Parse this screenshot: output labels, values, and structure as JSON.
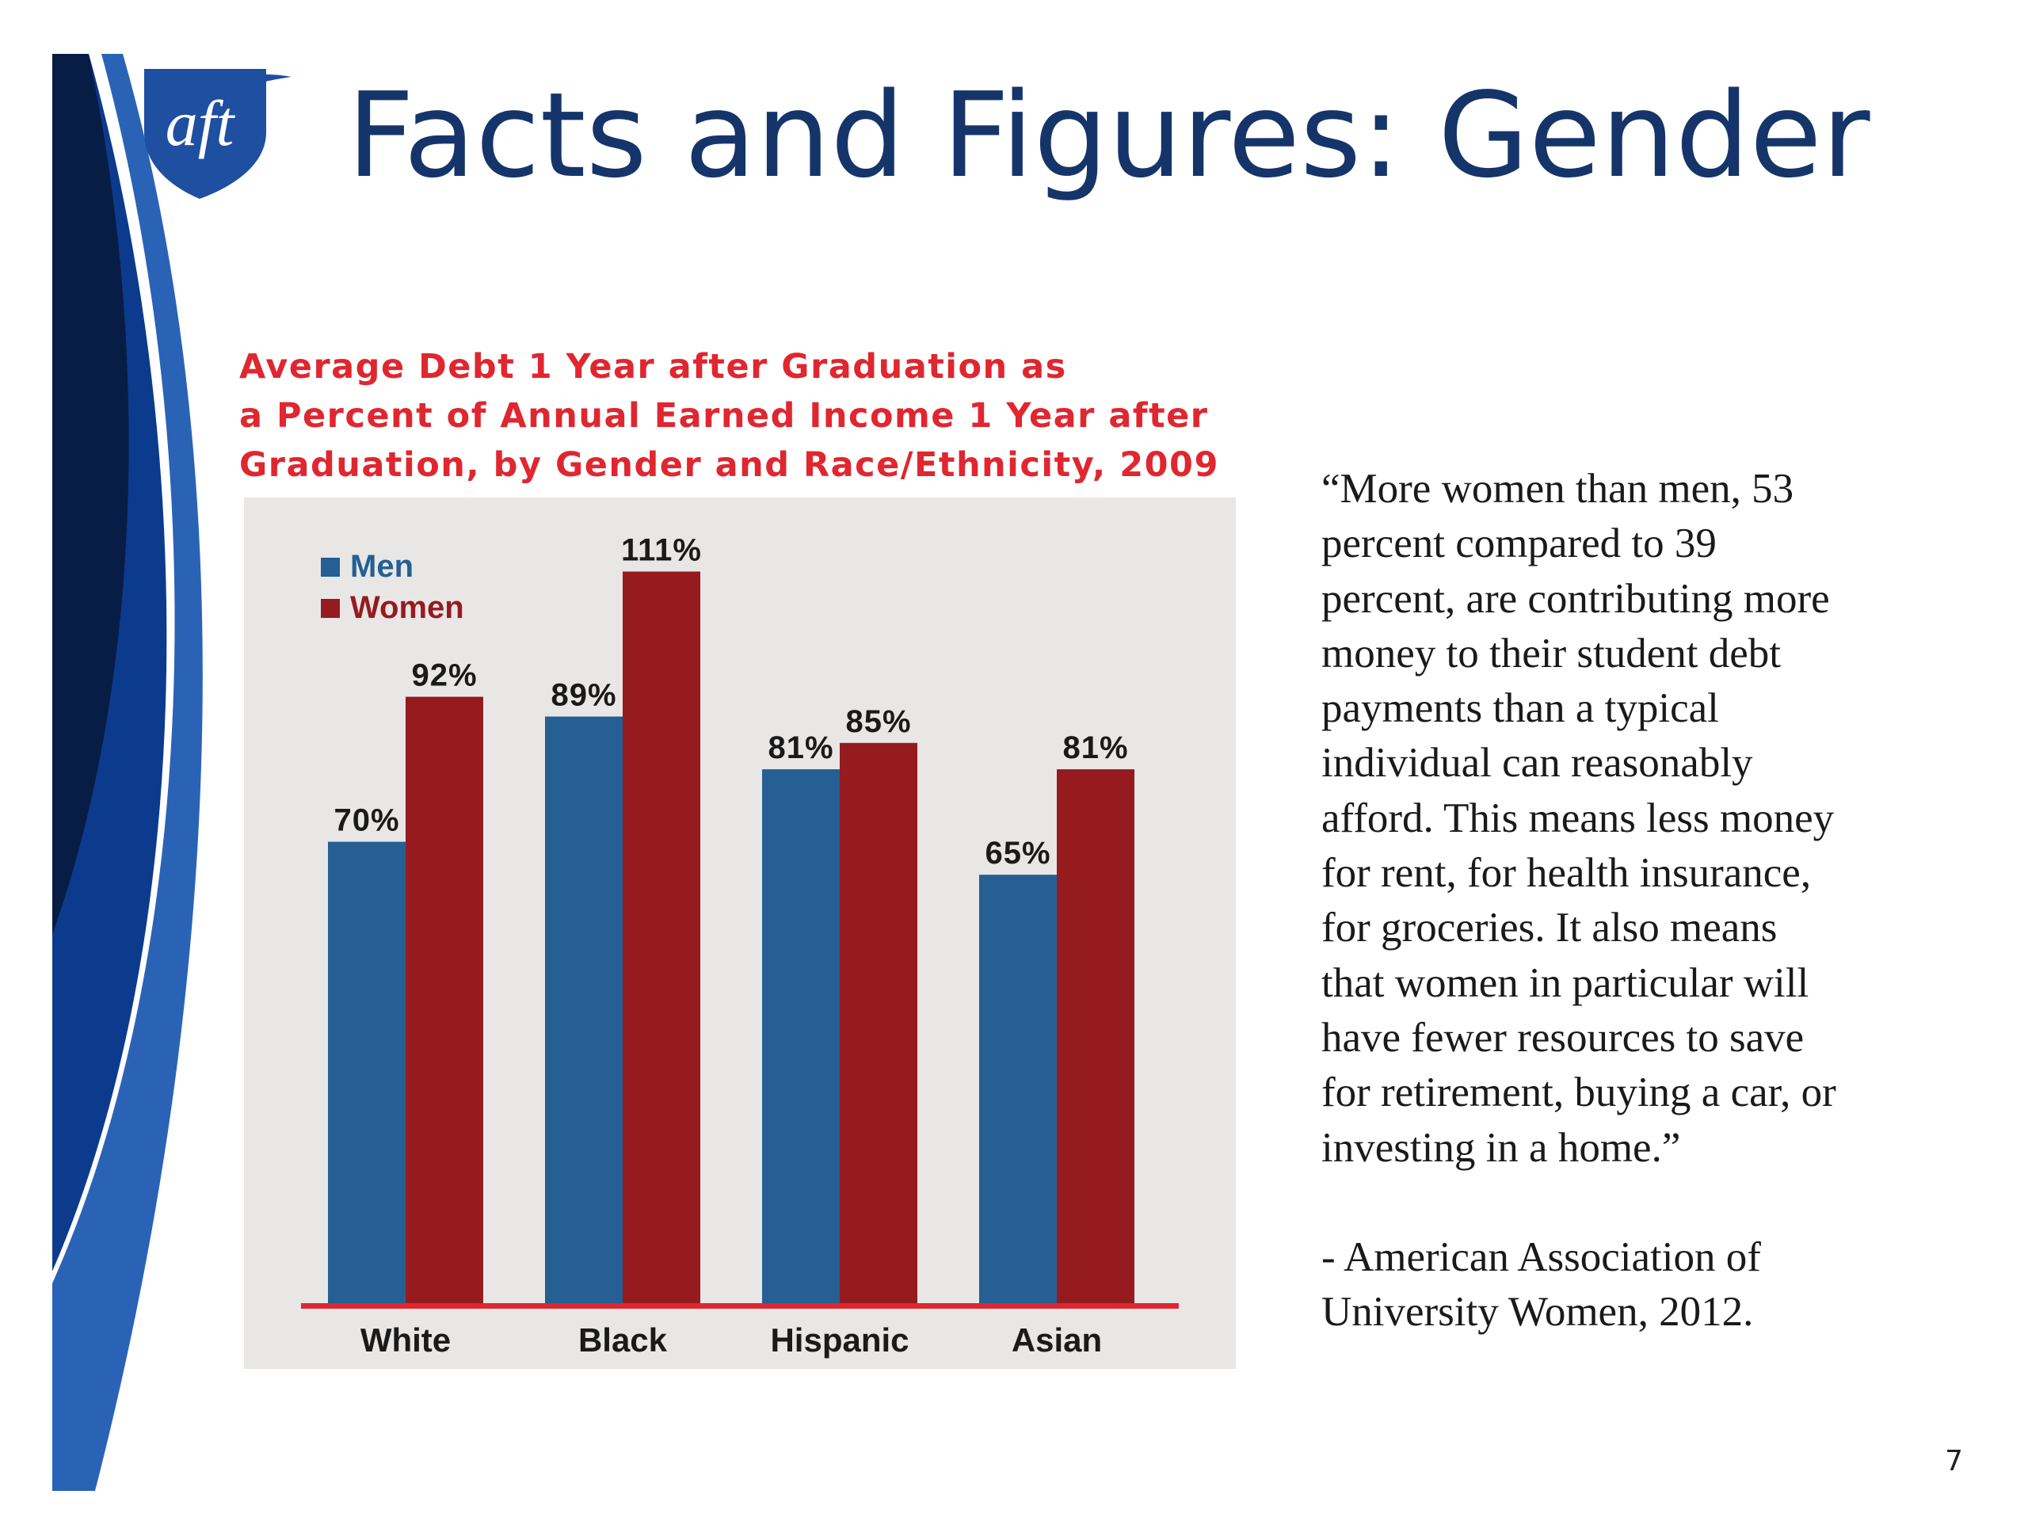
{
  "slide": {
    "title": "Facts and Figures: Gender",
    "page_number": "7"
  },
  "logo": {
    "text": "aft"
  },
  "colors": {
    "title": "#15356a",
    "chart_title": "#e0262f",
    "men": "#255f93",
    "women": "#951b1f",
    "baseline": "#e0262f",
    "plot_bg": "#e8e7e6"
  },
  "chart_data": {
    "type": "bar",
    "title_lines": [
      "Average Debt 1 Year after Graduation as",
      "a Percent of Annual Earned Income 1 Year after",
      "Graduation, by Gender and Race/Ethnicity, 2009"
    ],
    "categories": [
      "White",
      "Black",
      "Hispanic",
      "Asian"
    ],
    "series": [
      {
        "name": "Men",
        "values": [
          70,
          89,
          81,
          65
        ],
        "labels": [
          "70%",
          "89%",
          "81%",
          "65%"
        ]
      },
      {
        "name": "Women",
        "values": [
          92,
          111,
          85,
          81
        ],
        "labels": [
          "92%",
          "111%",
          "85%",
          "81%"
        ]
      }
    ],
    "ylim": [
      0,
      125
    ],
    "xlabel": "",
    "ylabel": "",
    "legend_position": "top-left",
    "grid": false
  },
  "quote": {
    "lines": [
      "“More women than men, 53",
      "percent compared to 39",
      "percent, are contributing more",
      "money to their student debt",
      "payments than a typical",
      "individual can reasonably",
      "afford. This means less money",
      "for rent, for health insurance,",
      "for groceries. It also means",
      "that women in particular will",
      "have fewer resources to save",
      "for retirement, buying a car, or",
      "investing in a home.”"
    ],
    "attribution_lines": [
      "- American Association of",
      "University Women, 2012."
    ]
  }
}
